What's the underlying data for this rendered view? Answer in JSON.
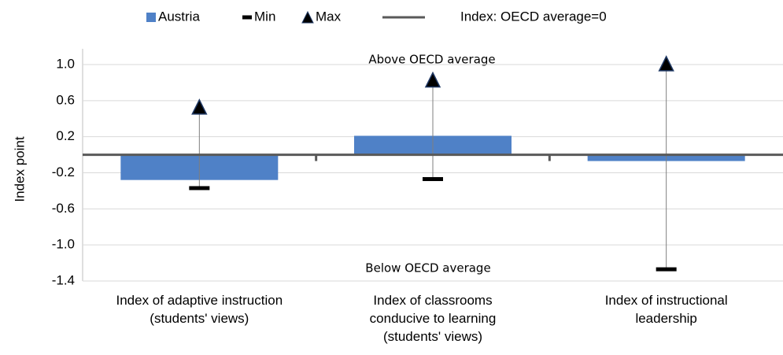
{
  "chart_data": {
    "type": "bar",
    "y_label": "Index point",
    "categories": [
      "Index of adaptive instruction\n(students' views)",
      "Index of classrooms\nconducive to learning\n(students' views)",
      "Index of instructional\nleadership"
    ],
    "series": [
      {
        "name": "Austria",
        "color": "#4f81c7",
        "values": [
          -0.28,
          0.21,
          -0.07
        ]
      },
      {
        "name": "Min",
        "color": "#000000",
        "values": [
          -0.37,
          -0.27,
          -1.27
        ]
      },
      {
        "name": "Max",
        "color": "#000000",
        "values": [
          0.53,
          0.83,
          1.01
        ]
      }
    ],
    "reference_line": {
      "name": "Index: OECD average=0",
      "value": 0,
      "color": "#595959"
    },
    "annotations": [
      "Above OECD average",
      "Below OECD average"
    ],
    "ylim": [
      -1.4,
      1.0
    ],
    "yticks": [
      {
        "value": 1.0,
        "label": "1.0"
      },
      0.6,
      0.2,
      -0.2,
      -0.6,
      {
        "value": -1.0,
        "label": "-1.0"
      },
      -1.4
    ],
    "grid": true,
    "legend": "top"
  }
}
